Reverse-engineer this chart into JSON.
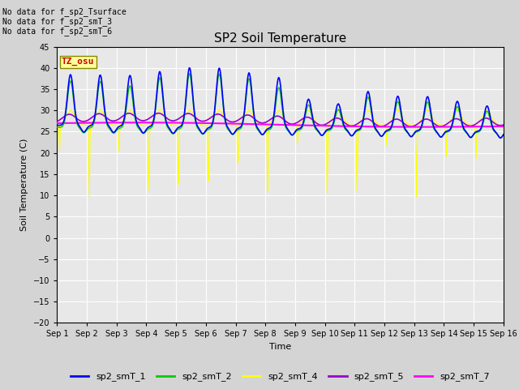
{
  "title": "SP2 Soil Temperature",
  "xlabel": "Time",
  "ylabel": "Soil Temperature (C)",
  "ylim": [
    -20,
    45
  ],
  "yticks": [
    -20,
    -15,
    -10,
    -5,
    0,
    5,
    10,
    15,
    20,
    25,
    30,
    35,
    40,
    45
  ],
  "xlim": [
    0,
    15
  ],
  "xtick_labels": [
    "Sep 1",
    "Sep 2",
    "Sep 3",
    "Sep 4",
    "Sep 5",
    "Sep 6",
    "Sep 7",
    "Sep 8",
    "Sep 9",
    "Sep 10",
    "Sep 11",
    "Sep 12",
    "Sep 13",
    "Sep 14",
    "Sep 15",
    "Sep 16"
  ],
  "no_data_texts": [
    "No data for f_sp2_Tsurface",
    "No data for f_sp2_smT_3",
    "No data for f_sp2_smT_6"
  ],
  "watermark_text": "TZ_osu",
  "watermark_color": "#cc0000",
  "watermark_bg": "#ffff99",
  "legend_entries": [
    "sp2_smT_1",
    "sp2_smT_2",
    "sp2_smT_4",
    "sp2_smT_5",
    "sp2_smT_7"
  ],
  "line_colors": {
    "sp2_smT_1": "#0000ff",
    "sp2_smT_2": "#00cc00",
    "sp2_smT_4": "#ffff00",
    "sp2_smT_5": "#9900cc",
    "sp2_smT_7": "#ff00ff"
  },
  "fig_bg_color": "#d4d4d4",
  "plot_bg_color": "#e8e8e8",
  "peak_amps_smT1": [
    12,
    12,
    12,
    13,
    14,
    14,
    13,
    12,
    7,
    6,
    9,
    8,
    8,
    7,
    6
  ],
  "peak_amps_smT2": [
    11,
    11,
    10,
    12,
    13,
    13,
    12,
    10,
    6,
    5,
    8,
    7,
    7,
    6,
    5
  ],
  "yellow_drop_depths": [
    -6.5,
    -18,
    -7,
    -17.5,
    -17,
    -17,
    -11,
    -18,
    -5,
    -17,
    -16,
    -5,
    -17,
    -7.5,
    -8
  ],
  "yellow_drop_times": [
    0.08,
    1.08,
    2.08,
    3.08,
    4.08,
    5.08,
    6.08,
    7.08,
    8.08,
    9.08,
    10.08,
    11.08,
    12.08,
    13.08,
    14.08
  ]
}
